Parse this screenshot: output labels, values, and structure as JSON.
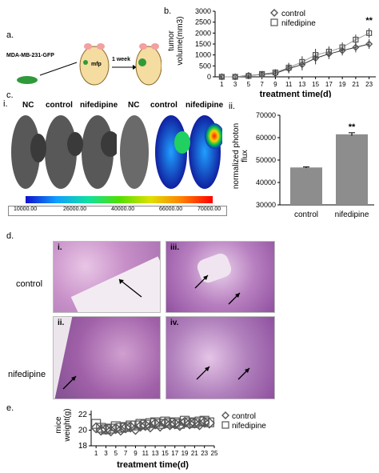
{
  "panel_labels": {
    "a": "a.",
    "b": "b.",
    "c": "c.",
    "c_i": "i.",
    "c_ii": "ii.",
    "d": "d.",
    "e": "e."
  },
  "schematic": {
    "cell_line": "MDA-MB-231-GFP",
    "site": "mfp",
    "time": "1 week"
  },
  "imaging": {
    "groups": [
      "NC",
      "control",
      "nifedipine",
      "NC",
      "control",
      "nifedipine"
    ],
    "scale_ticks": [
      "10000.00",
      "26000.00",
      "40000.00",
      "66000.00",
      "70000.00"
    ]
  },
  "histology": {
    "rows": [
      "control",
      "nifedipine"
    ],
    "subpanels": [
      "i.",
      "iii.",
      "ii.",
      "iv."
    ]
  },
  "colors": {
    "he_pink": "#c9a0c9",
    "he_purple": "#7a4c8a",
    "bar_gray": "#8d8d8d"
  },
  "chart_data": [
    {
      "id": "tumor-volume",
      "type": "line",
      "x": [
        1,
        3,
        5,
        7,
        9,
        11,
        13,
        15,
        17,
        19,
        21,
        23
      ],
      "series": [
        {
          "name": "control",
          "marker": "diamond",
          "values": [
            0,
            0,
            60,
            110,
            160,
            380,
            560,
            850,
            1050,
            1200,
            1350,
            1500
          ]
        },
        {
          "name": "nifedipine",
          "marker": "square",
          "values": [
            0,
            0,
            40,
            130,
            200,
            420,
            680,
            1000,
            1150,
            1350,
            1700,
            2000
          ]
        }
      ],
      "errors": [
        60,
        60,
        80,
        120,
        150,
        220,
        260,
        280,
        240,
        220,
        230,
        220
      ],
      "xticks": [
        "1",
        "3",
        "5",
        "7",
        "9",
        "11",
        "13",
        "15",
        "17",
        "19",
        "21",
        "23"
      ],
      "yticks": [
        "0",
        "500",
        "1000",
        "1500",
        "2000",
        "2500",
        "3000"
      ],
      "ylim": [
        0,
        3000
      ],
      "xlabel": "treatment time(d)",
      "ylabel": "tumor\nvolume(mm3)",
      "annotation": "**"
    },
    {
      "id": "photon-flux",
      "type": "bar",
      "categories": [
        "control",
        "nifedipine"
      ],
      "values": [
        46700,
        61500
      ],
      "errors": [
        250,
        700
      ],
      "yticks": [
        "30000",
        "40000",
        "50000",
        "60000",
        "70000"
      ],
      "ylim": [
        30000,
        70000
      ],
      "ylabel": "normalized photon\nflux",
      "annotation": "**"
    },
    {
      "id": "mice-weight",
      "type": "scatter",
      "x": [
        1,
        2,
        3,
        4,
        5,
        6,
        7,
        8,
        9,
        10,
        11,
        12,
        13,
        14,
        15,
        16,
        17,
        18,
        19,
        20,
        21,
        22,
        23,
        24
      ],
      "series": [
        {
          "name": "control",
          "marker": "diamond",
          "values": [
            20.3,
            20.0,
            20.1,
            19.9,
            20.2,
            20.0,
            20.3,
            20.4,
            20.1,
            20.5,
            20.6,
            20.4,
            20.8,
            20.5,
            20.9,
            20.7,
            20.8,
            20.6,
            21.0,
            20.8,
            20.9,
            20.7,
            21.0,
            20.9
          ]
        },
        {
          "name": "nifedipine",
          "marker": "square",
          "values": [
            20.8,
            20.3,
            20.1,
            20.2,
            20.5,
            20.3,
            20.4,
            20.6,
            20.6,
            20.8,
            20.7,
            20.9,
            21.0,
            20.8,
            21.1,
            20.9,
            21.0,
            20.8,
            21.2,
            21.0,
            20.9,
            21.1,
            21.2,
            21.0
          ]
        }
      ],
      "xticks": [
        "1",
        "3",
        "5",
        "7",
        "9",
        "11",
        "13",
        "15",
        "17",
        "19",
        "21",
        "23",
        "25"
      ],
      "yticks": [
        "18",
        "20",
        "22"
      ],
      "ylim": [
        18,
        22.5
      ],
      "xlabel": "treatment time(d)",
      "ylabel": "mice\nweight(g)"
    }
  ]
}
